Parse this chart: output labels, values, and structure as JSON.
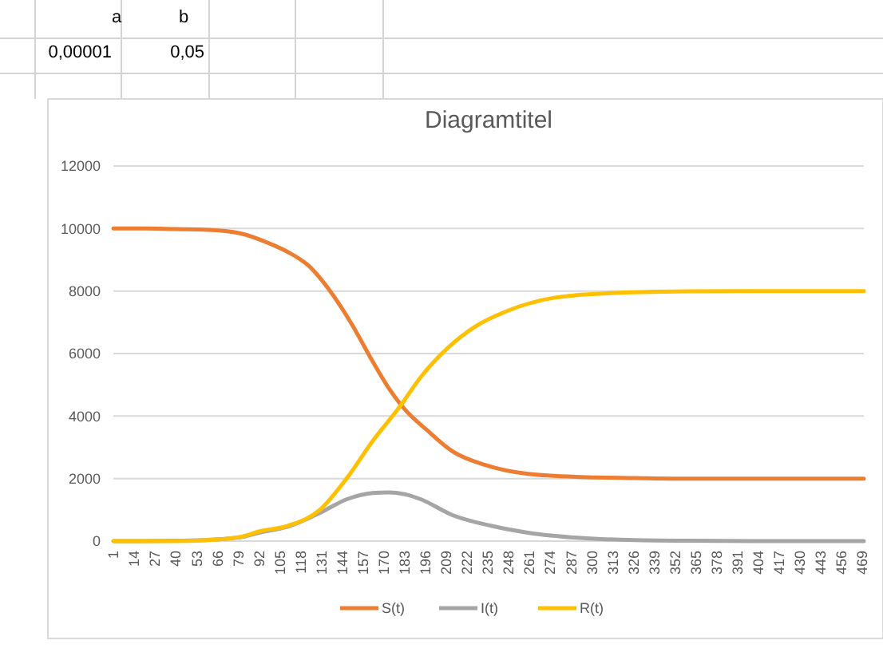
{
  "chart_data": {
    "type": "line",
    "title": "Diagramtitel",
    "annotations": [
      "a",
      "b",
      "0,00001",
      "0,05"
    ],
    "xlim": [
      1,
      470
    ],
    "xticks": [
      1,
      14,
      27,
      40,
      53,
      66,
      79,
      92,
      105,
      118,
      131,
      144,
      157,
      170,
      183,
      196,
      209,
      222,
      235,
      248,
      261,
      274,
      287,
      300,
      313,
      326,
      339,
      352,
      365,
      378,
      391,
      404,
      417,
      430,
      443,
      456,
      469
    ],
    "ylim": [
      0,
      12000
    ],
    "yticks": [
      0,
      2000,
      4000,
      6000,
      8000,
      10000,
      12000
    ],
    "grid": "y",
    "legend": "bottom",
    "line_style": "solid",
    "series": [
      {
        "name": "S(t)",
        "color": "#ed7d31",
        "x": [
          1,
          20,
          40,
          60,
          80,
          100,
          110,
          123,
          137,
          150,
          163,
          173,
          183,
          197,
          213,
          233,
          260,
          293,
          327,
          360,
          400,
          440,
          470
        ],
        "values": [
          10000,
          10000,
          9980,
          9960,
          9850,
          9490,
          9250,
          8810,
          7960,
          6940,
          5750,
          4900,
          4220,
          3550,
          2870,
          2440,
          2150,
          2050,
          2020,
          2000,
          2000,
          2000,
          2000
        ]
      },
      {
        "name": "I(t)",
        "color": "#a5a5a5",
        "x": [
          1,
          40,
          60,
          80,
          93,
          110,
          130,
          147,
          163,
          173,
          183,
          193,
          213,
          237,
          260,
          293,
          327,
          360,
          400,
          440,
          470
        ],
        "values": [
          0,
          10,
          40,
          120,
          280,
          460,
          900,
          1340,
          1540,
          1560,
          1500,
          1340,
          830,
          490,
          270,
          100,
          30,
          10,
          0,
          0,
          0
        ]
      },
      {
        "name": "R(t)",
        "color": "#ffc000",
        "x": [
          1,
          40,
          60,
          80,
          93,
          110,
          130,
          147,
          163,
          180,
          193,
          210,
          227,
          247,
          277,
          310,
          360,
          400,
          440,
          470
        ],
        "values": [
          0,
          0,
          30,
          130,
          320,
          490,
          1000,
          2020,
          3200,
          4300,
          5240,
          6180,
          6860,
          7360,
          7790,
          7930,
          7990,
          8000,
          8000,
          8000
        ]
      }
    ]
  }
}
